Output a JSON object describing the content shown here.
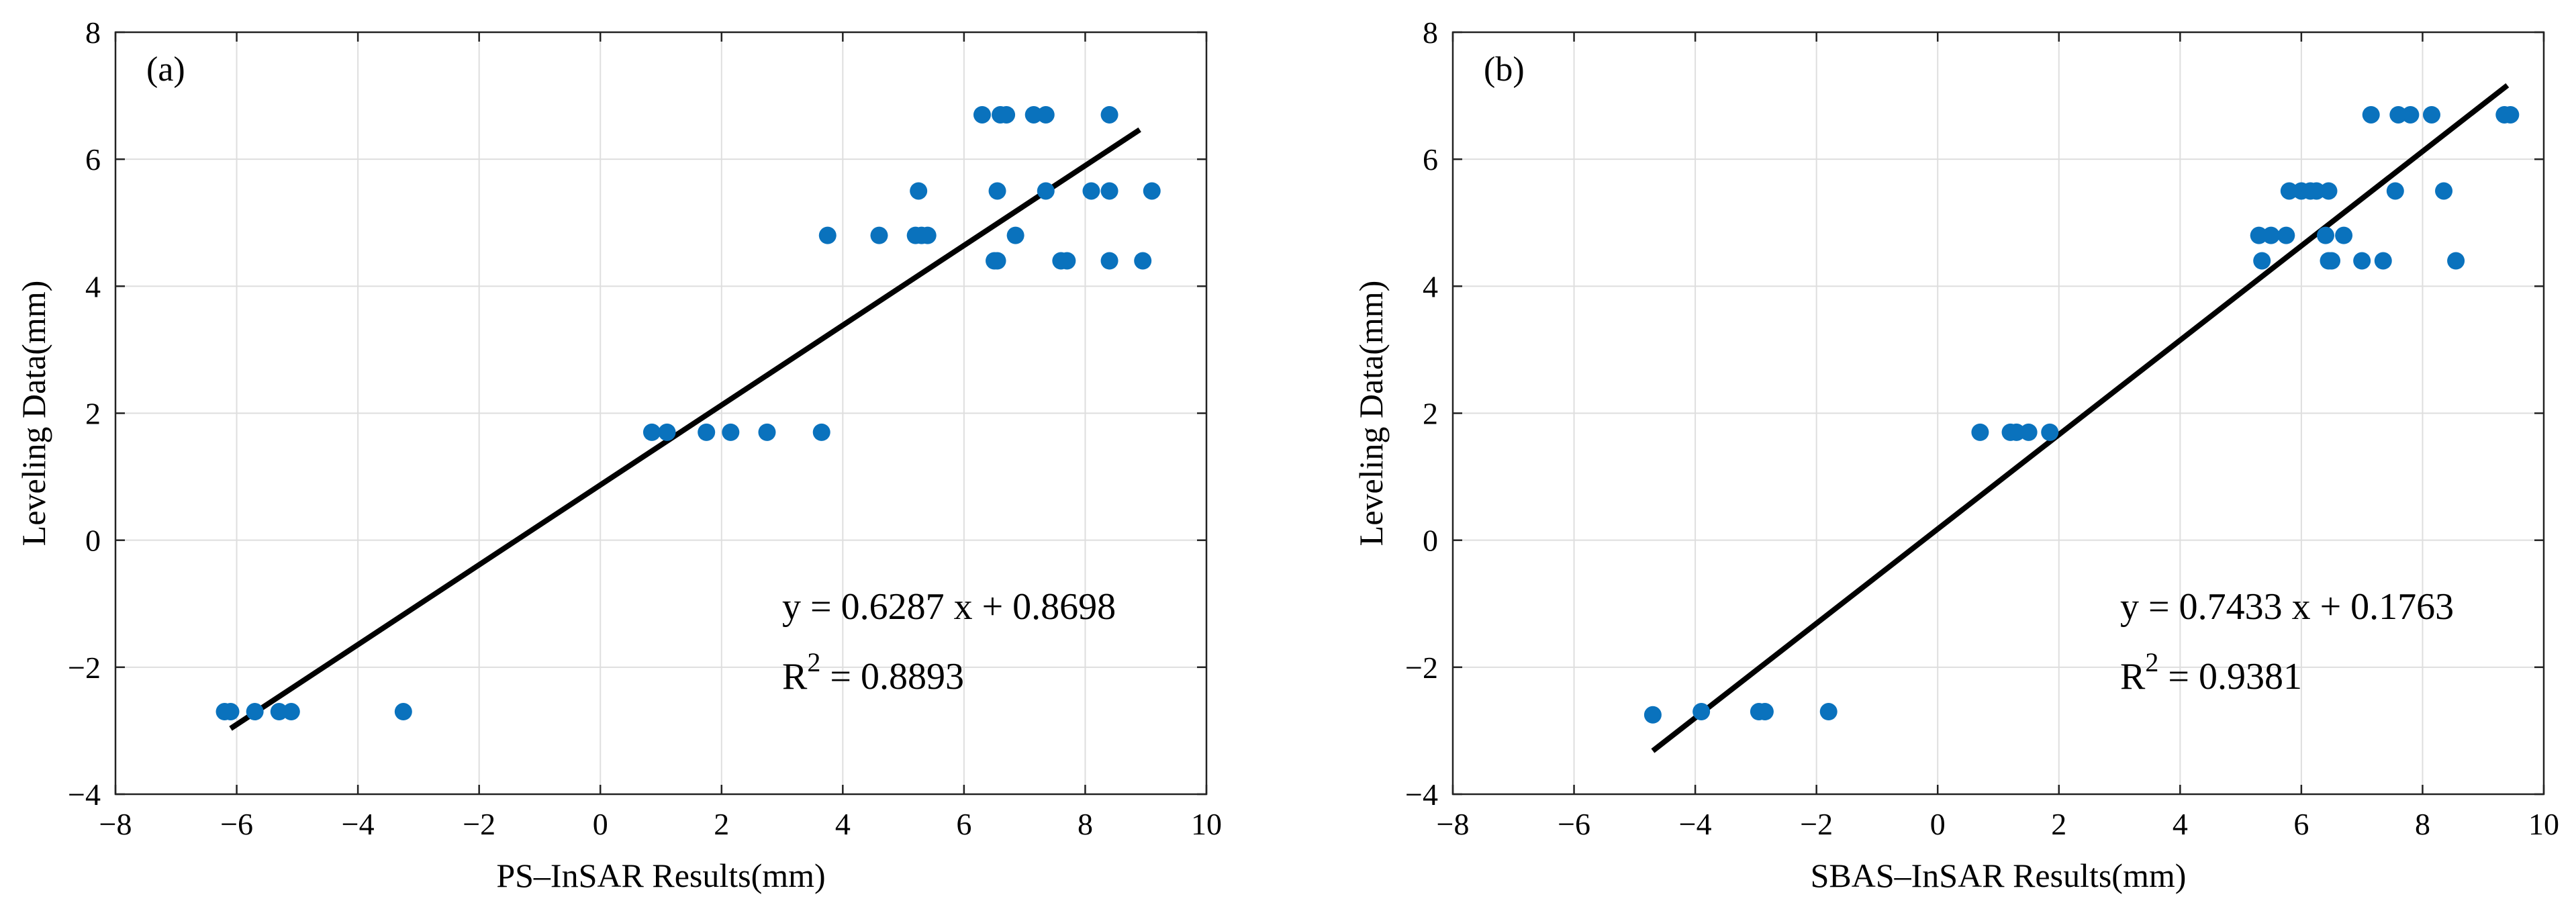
{
  "chart_data": [
    {
      "type": "scatter",
      "panel_label": "(a)",
      "xlabel": "PS–InSAR Results(mm)",
      "ylabel": "Leveling Data(mm)",
      "xlim": [
        -8,
        10
      ],
      "ylim": [
        -4,
        8
      ],
      "xticks": [
        -8,
        -6,
        -4,
        -2,
        0,
        2,
        4,
        6,
        8,
        10
      ],
      "yticks": [
        -4,
        -2,
        0,
        2,
        4,
        6,
        8
      ],
      "xtick_labels": [
        "−8",
        "−6",
        "−4",
        "−2",
        "0",
        "2",
        "4",
        "6",
        "8",
        "10"
      ],
      "ytick_labels": [
        "−4",
        "−2",
        "0",
        "2",
        "4",
        "6",
        "8"
      ],
      "grid": true,
      "equation_text": "y = 0.6287 x + 0.8698",
      "r2_prefix": "R",
      "r2_sup": "2",
      "r2_value": " = 0.8893",
      "fit": {
        "slope": 0.6287,
        "intercept": 0.8698,
        "x_range": [
          -6.1,
          8.9
        ]
      },
      "points": [
        [
          -6.2,
          -2.7
        ],
        [
          -6.1,
          -2.7
        ],
        [
          -5.7,
          -2.7
        ],
        [
          -5.3,
          -2.7
        ],
        [
          -5.1,
          -2.7
        ],
        [
          -3.25,
          -2.7
        ],
        [
          0.85,
          1.7
        ],
        [
          1.1,
          1.7
        ],
        [
          1.75,
          1.7
        ],
        [
          2.15,
          1.7
        ],
        [
          2.75,
          1.7
        ],
        [
          3.65,
          1.7
        ],
        [
          3.75,
          4.8
        ],
        [
          4.6,
          4.8
        ],
        [
          5.2,
          4.8
        ],
        [
          5.3,
          4.8
        ],
        [
          5.4,
          4.8
        ],
        [
          6.85,
          4.8
        ],
        [
          5.25,
          5.5
        ],
        [
          6.55,
          5.5
        ],
        [
          7.35,
          5.5
        ],
        [
          8.1,
          5.5
        ],
        [
          8.4,
          5.5
        ],
        [
          9.1,
          5.5
        ],
        [
          6.5,
          4.4
        ],
        [
          6.55,
          4.4
        ],
        [
          7.6,
          4.4
        ],
        [
          7.7,
          4.4
        ],
        [
          8.4,
          4.4
        ],
        [
          8.95,
          4.4
        ],
        [
          6.3,
          6.7
        ],
        [
          6.6,
          6.7
        ],
        [
          6.7,
          6.7
        ],
        [
          7.15,
          6.7
        ],
        [
          7.35,
          6.7
        ],
        [
          8.4,
          6.7
        ]
      ]
    },
    {
      "type": "scatter",
      "panel_label": "(b)",
      "xlabel": "SBAS–InSAR Results(mm)",
      "ylabel": "Leveling Data(mm)",
      "xlim": [
        -8,
        10
      ],
      "ylim": [
        -4,
        8
      ],
      "xticks": [
        -8,
        -6,
        -4,
        -2,
        0,
        2,
        4,
        6,
        8,
        10
      ],
      "yticks": [
        -4,
        -2,
        0,
        2,
        4,
        6,
        8
      ],
      "xtick_labels": [
        "−8",
        "−6",
        "−4",
        "−2",
        "0",
        "2",
        "4",
        "6",
        "8",
        "10"
      ],
      "ytick_labels": [
        "−4",
        "−2",
        "0",
        "2",
        "4",
        "6",
        "8"
      ],
      "grid": true,
      "equation_text": "y = 0.7433 x + 0.1763",
      "r2_prefix": "R",
      "r2_sup": "2",
      "r2_value": " = 0.9381",
      "fit": {
        "slope": 0.7433,
        "intercept": 0.1763,
        "x_range": [
          -4.7,
          9.4
        ]
      },
      "points": [
        [
          -4.7,
          -2.75
        ],
        [
          -3.9,
          -2.7
        ],
        [
          -2.95,
          -2.7
        ],
        [
          -2.85,
          -2.7
        ],
        [
          -1.8,
          -2.7
        ],
        [
          0.7,
          1.7
        ],
        [
          1.2,
          1.7
        ],
        [
          1.3,
          1.7
        ],
        [
          1.5,
          1.7
        ],
        [
          1.85,
          1.7
        ],
        [
          5.3,
          4.8
        ],
        [
          5.5,
          4.8
        ],
        [
          5.75,
          4.8
        ],
        [
          6.4,
          4.8
        ],
        [
          6.7,
          4.8
        ],
        [
          5.8,
          5.5
        ],
        [
          6.0,
          5.5
        ],
        [
          6.15,
          5.5
        ],
        [
          6.25,
          5.5
        ],
        [
          6.45,
          5.5
        ],
        [
          7.55,
          5.5
        ],
        [
          8.35,
          5.5
        ],
        [
          5.35,
          4.4
        ],
        [
          6.45,
          4.4
        ],
        [
          6.5,
          4.4
        ],
        [
          7.0,
          4.4
        ],
        [
          7.35,
          4.4
        ],
        [
          8.55,
          4.4
        ],
        [
          7.15,
          6.7
        ],
        [
          7.6,
          6.7
        ],
        [
          7.8,
          6.7
        ],
        [
          8.15,
          6.7
        ],
        [
          9.35,
          6.7
        ],
        [
          9.45,
          6.7
        ]
      ]
    }
  ]
}
